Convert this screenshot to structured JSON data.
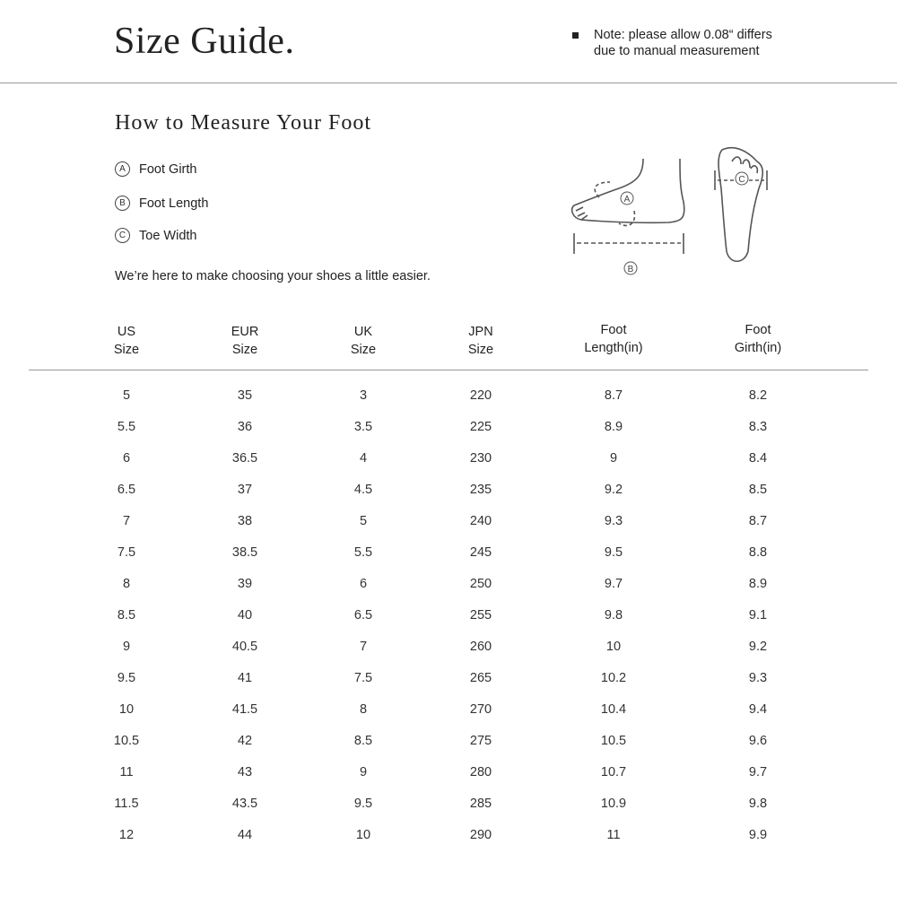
{
  "header": {
    "title": "Size Guide.",
    "note_line1": "Note: please allow 0.08“ differs",
    "note_line2": "due to manual measurement"
  },
  "measure": {
    "title": "How to Measure Your Foot",
    "items": [
      {
        "marker": "A",
        "label": "Foot Girth"
      },
      {
        "marker": "B",
        "label": "Foot Length"
      },
      {
        "marker": "C",
        "label": "Toe Width"
      }
    ],
    "tagline": "We’re here to make choosing your shoes a little easier."
  },
  "table": {
    "headers": [
      [
        "US",
        "Size"
      ],
      [
        "EUR",
        "Size"
      ],
      [
        "UK",
        "Size"
      ],
      [
        "JPN",
        "Size"
      ],
      [
        "Foot",
        "Length(in)"
      ],
      [
        "Foot",
        "Girth(in)"
      ]
    ],
    "rows": [
      [
        "5",
        "35",
        "3",
        "220",
        "8.7",
        "8.2"
      ],
      [
        "5.5",
        "36",
        "3.5",
        "225",
        "8.9",
        "8.3"
      ],
      [
        "6",
        "36.5",
        "4",
        "230",
        "9",
        "8.4"
      ],
      [
        "6.5",
        "37",
        "4.5",
        "235",
        "9.2",
        "8.5"
      ],
      [
        "7",
        "38",
        "5",
        "240",
        "9.3",
        "8.7"
      ],
      [
        "7.5",
        "38.5",
        "5.5",
        "245",
        "9.5",
        "8.8"
      ],
      [
        "8",
        "39",
        "6",
        "250",
        "9.7",
        "8.9"
      ],
      [
        "8.5",
        "40",
        "6.5",
        "255",
        "9.8",
        "9.1"
      ],
      [
        "9",
        "40.5",
        "7",
        "260",
        "10",
        "9.2"
      ],
      [
        "9.5",
        "41",
        "7.5",
        "265",
        "10.2",
        "9.3"
      ],
      [
        "10",
        "41.5",
        "8",
        "270",
        "10.4",
        "9.4"
      ],
      [
        "10.5",
        "42",
        "8.5",
        "275",
        "10.5",
        "9.6"
      ],
      [
        "11",
        "43",
        "9",
        "280",
        "10.7",
        "9.7"
      ],
      [
        "11.5",
        "43.5",
        "9.5",
        "285",
        "10.9",
        "9.8"
      ],
      [
        "12",
        "44",
        "10",
        "290",
        "11",
        "9.9"
      ]
    ]
  }
}
